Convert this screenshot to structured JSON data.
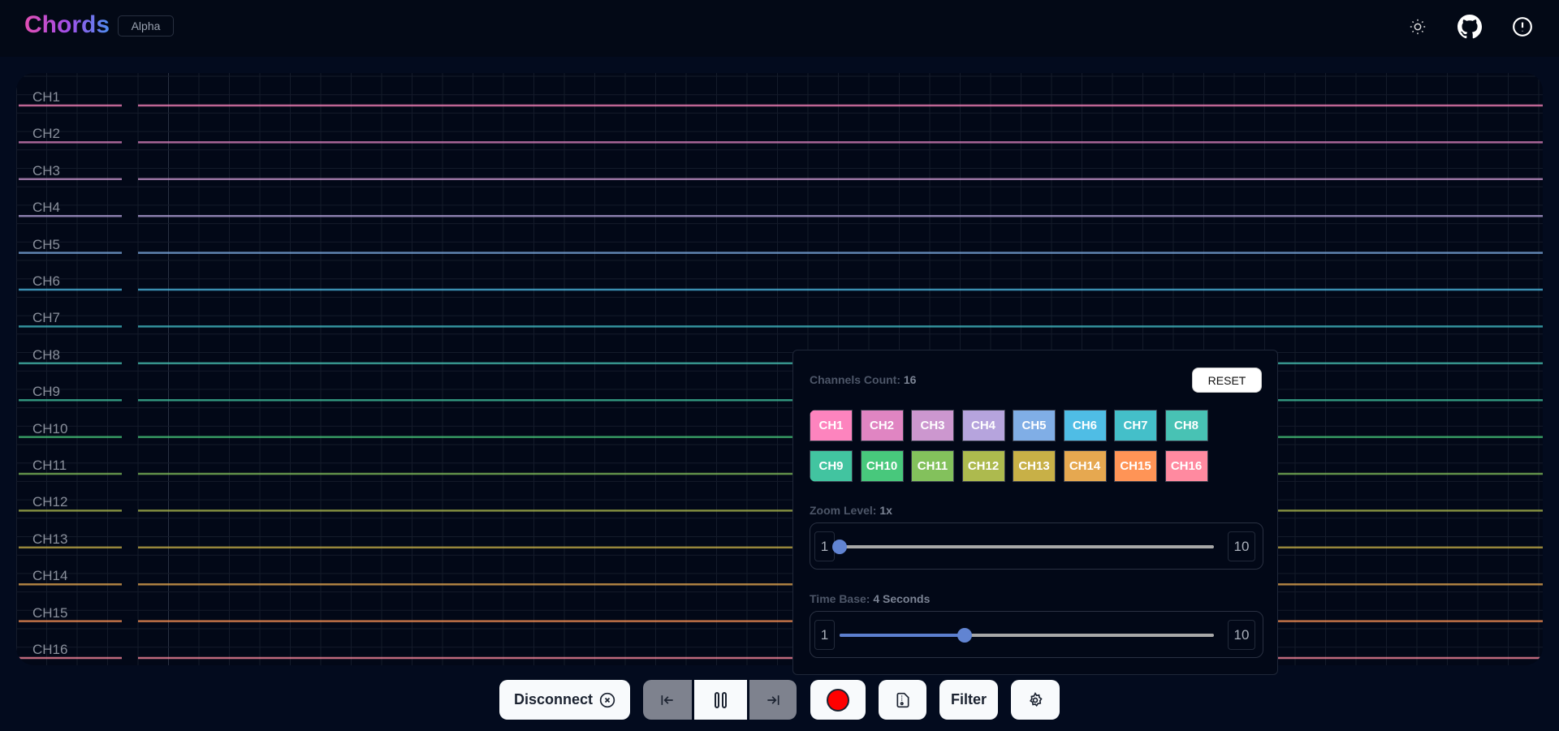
{
  "header": {
    "title": "Chords",
    "badge": "Alpha",
    "icons": [
      "sun-icon",
      "github-icon",
      "alert-circle-icon"
    ]
  },
  "plot": {
    "channels": [
      "CH1",
      "CH2",
      "CH3",
      "CH4",
      "CH5",
      "CH6",
      "CH7",
      "CH8",
      "CH9",
      "CH10",
      "CH11",
      "CH12",
      "CH13",
      "CH14",
      "CH15",
      "CH16"
    ],
    "colors": [
      "#FD84BE",
      "#E085C2",
      "#CC97CF",
      "#B6A4DD",
      "#80AEE6",
      "#4FBDE5",
      "#44BFC9",
      "#48C2B4",
      "#42C4A0",
      "#48C87C",
      "#83C15C",
      "#ADBA4E",
      "#C8B047",
      "#E6A850",
      "#FF9456",
      "#FF8AA0"
    ]
  },
  "panel": {
    "channels_label": "Channels Count:",
    "channels_value": "16",
    "reset": "RESET",
    "zoom_label": "Zoom Level:",
    "zoom_value": "1x",
    "zoom_min": "1",
    "zoom_max": "10",
    "zoom_level": 1,
    "time_label": "Time Base:",
    "time_value": "4 Seconds",
    "time_min": "1",
    "time_max": "10",
    "time_base": 4
  },
  "toolbar": {
    "disconnect": "Disconnect",
    "filter": "Filter",
    "record_color": "#FF0000"
  }
}
